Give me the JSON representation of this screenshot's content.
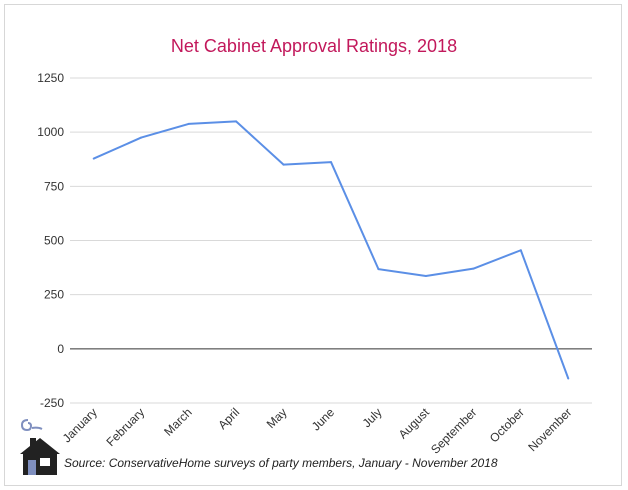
{
  "chart_data": {
    "type": "line",
    "title": "Net Cabinet Approval Ratings, 2018",
    "xlabel": "",
    "ylabel": "",
    "categories": [
      "January",
      "February",
      "March",
      "April",
      "May",
      "June",
      "July",
      "August",
      "September",
      "October",
      "November"
    ],
    "series": [
      {
        "values": [
          878,
          975,
          1038,
          1050,
          850,
          862,
          368,
          336,
          370,
          455,
          -137
        ]
      }
    ],
    "ylim": [
      -250,
      1250
    ],
    "yticks": [
      -250,
      0,
      250,
      500,
      750,
      1000,
      1250
    ],
    "grid": true,
    "legend": "none",
    "colors": {
      "line": "#5b8fe6",
      "grid": "#d9d9d9",
      "zero_line": "#333333",
      "title": "#c2185b"
    },
    "source": "Source: ConservativeHome surveys of party members, January - November 2018"
  }
}
